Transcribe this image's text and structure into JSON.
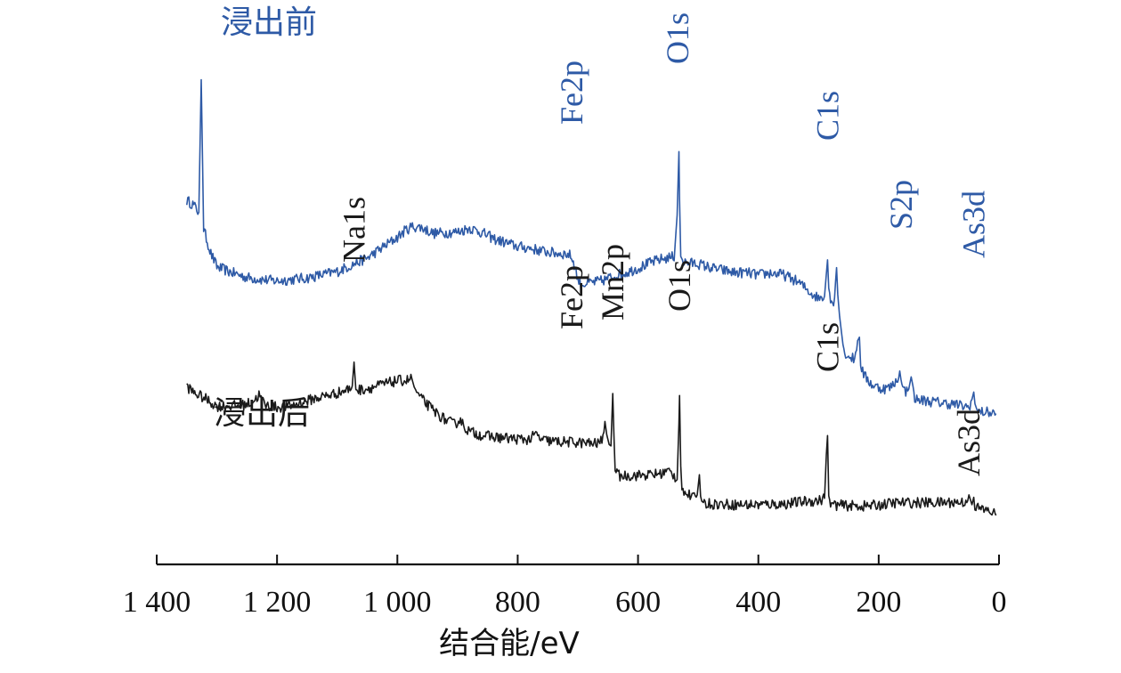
{
  "chart_data": {
    "type": "line",
    "title": "",
    "xlabel": "结合能/eV",
    "ylabel": "",
    "xlim": [
      1400,
      0
    ],
    "x_reversed": true,
    "x_ticks": [
      1400,
      1200,
      1000,
      800,
      600,
      400,
      200,
      0
    ],
    "x_tick_labels": [
      "1 400",
      "1 200",
      "1 000",
      "800",
      "600",
      "400",
      "200",
      "0"
    ],
    "grid": false,
    "colors": {
      "before": "#2e5aa6",
      "after": "#1a1a1a",
      "axis": "#111111"
    },
    "series": [
      {
        "name": "浸出前",
        "color": "#2e5aa6",
        "x": [
          1350,
          1340,
          1335,
          1330,
          1326,
          1322,
          1310,
          1300,
          1280,
          1250,
          1220,
          1200,
          1150,
          1100,
          1050,
          1000,
          985,
          975,
          960,
          940,
          900,
          880,
          860,
          840,
          820,
          800,
          780,
          760,
          740,
          720,
          712,
          706,
          700,
          695,
          690,
          680,
          660,
          640,
          620,
          600,
          580,
          560,
          550,
          540,
          535,
          532,
          531,
          529,
          525,
          520,
          500,
          480,
          460,
          440,
          420,
          400,
          380,
          360,
          340,
          330,
          320,
          310,
          300,
          290,
          287,
          285,
          283,
          280,
          275,
          270,
          268,
          265,
          262,
          258,
          250,
          240,
          235,
          232,
          230,
          225,
          220,
          210,
          200,
          190,
          180,
          170,
          165,
          163,
          160,
          155,
          150,
          146,
          143,
          140,
          135,
          130,
          120,
          110,
          100,
          90,
          80,
          70,
          60,
          50,
          45,
          42,
          40,
          37,
          35,
          30,
          20,
          10,
          5
        ],
        "values": [
          66.3,
          65.6,
          64.7,
          63.9,
          91.0,
          60.5,
          55.5,
          52.8,
          51.8,
          50.6,
          50.1,
          49.9,
          50.5,
          51.8,
          54.6,
          58.8,
          60.4,
          61.0,
          60.8,
          59.6,
          59.9,
          60.7,
          59.8,
          58.5,
          57.7,
          56.9,
          56.6,
          56.0,
          55.6,
          55.4,
          55.1,
          53.3,
          50.2,
          49.1,
          49.3,
          49.5,
          49.9,
          50.9,
          51.6,
          52.5,
          53.6,
          54.4,
          54.6,
          54.9,
          63.3,
          76.3,
          66.6,
          54.9,
          53.9,
          53.6,
          53.4,
          52.6,
          52.1,
          51.6,
          51.6,
          51.1,
          51.5,
          51.2,
          50.1,
          49.3,
          48.2,
          47.2,
          46.4,
          46.8,
          51.3,
          54.2,
          48.4,
          46.5,
          44.9,
          52.6,
          47.1,
          42.7,
          39.6,
          35.5,
          34.5,
          33.9,
          37.7,
          38.4,
          32.9,
          30.8,
          29.9,
          28.6,
          28.1,
          27.9,
          28.2,
          29.6,
          31.5,
          29.8,
          27.9,
          27.3,
          27.8,
          30.3,
          28.4,
          26.1,
          25.4,
          25.6,
          25.4,
          25.2,
          25.1,
          24.9,
          24.8,
          24.6,
          24.3,
          24.1,
          25.7,
          27.2,
          24.8,
          23.7,
          23.3,
          23.1,
          23.1,
          22.9,
          22.8
        ]
      },
      {
        "name": "浸出后",
        "color": "#1a1a1a",
        "x": [
          1350,
          1340,
          1320,
          1300,
          1280,
          1260,
          1240,
          1230,
          1225,
          1220,
          1200,
          1180,
          1160,
          1140,
          1120,
          1100,
          1080,
          1075,
          1072,
          1069,
          1066,
          1060,
          1040,
          1020,
          1000,
          985,
          976,
          972,
          968,
          960,
          940,
          920,
          905,
          895,
          890,
          880,
          860,
          840,
          820,
          800,
          780,
          770,
          760,
          740,
          720,
          700,
          680,
          665,
          660,
          655,
          652,
          648,
          645,
          642,
          640,
          638,
          635,
          630,
          620,
          600,
          580,
          560,
          550,
          545,
          540,
          535,
          532,
          531,
          529,
          527,
          522,
          515,
          505,
          500,
          498,
          496,
          494,
          490,
          480,
          460,
          440,
          420,
          400,
          380,
          360,
          340,
          320,
          300,
          290,
          287,
          285,
          283,
          280,
          270,
          250,
          230,
          210,
          190,
          170,
          160,
          155,
          150,
          140,
          120,
          100,
          80,
          60,
          52,
          50,
          47,
          45,
          42,
          40,
          35,
          30,
          20,
          10,
          5
        ],
        "values": [
          28.4,
          27.2,
          25.9,
          24.3,
          24.4,
          24.4,
          25.2,
          26.6,
          25.7,
          24.5,
          24.1,
          24.3,
          25.0,
          25.8,
          26.4,
          27.0,
          27.8,
          28.4,
          33.3,
          27.7,
          27.6,
          27.7,
          28.2,
          28.9,
          29.5,
          29.6,
          30.0,
          28.2,
          27.3,
          25.8,
          23.4,
          21.5,
          20.6,
          21.7,
          20.3,
          19.1,
          18.4,
          18.0,
          17.8,
          17.6,
          17.5,
          18.6,
          17.4,
          17.1,
          17.0,
          16.9,
          16.7,
          16.7,
          17.6,
          21.2,
          18.5,
          16.5,
          16.2,
          26.9,
          18.2,
          11.1,
          10.4,
          10.1,
          10.1,
          10.2,
          10.3,
          10.6,
          11.1,
          10.7,
          10.1,
          9.3,
          20.8,
          26.5,
          12.1,
          8.0,
          6.6,
          6.1,
          5.4,
          8.0,
          10.3,
          5.9,
          4.9,
          4.5,
          4.4,
          4.3,
          4.2,
          4.2,
          4.2,
          4.3,
          4.3,
          4.6,
          4.9,
          5.0,
          5.5,
          14.4,
          18.3,
          6.0,
          4.4,
          4.1,
          4.0,
          3.9,
          4.0,
          4.3,
          4.6,
          4.6,
          4.5,
          4.6,
          4.6,
          4.6,
          4.6,
          4.7,
          4.7,
          5.0,
          6.2,
          5.0,
          4.2,
          5.7,
          4.0,
          3.5,
          3.3,
          3.0,
          2.6,
          2.0
        ]
      }
    ],
    "annotations": [
      {
        "text": "浸出前",
        "series": "浸出前",
        "kind": "series-label"
      },
      {
        "text": "浸出后",
        "series": "浸出后",
        "kind": "series-label"
      },
      {
        "text": "Fe2p",
        "series": "浸出前",
        "x": 710,
        "kind": "peak"
      },
      {
        "text": "O1s",
        "series": "浸出前",
        "x": 531,
        "kind": "peak"
      },
      {
        "text": "C1s",
        "series": "浸出前",
        "x": 285,
        "kind": "peak"
      },
      {
        "text": "S2p",
        "series": "浸出前",
        "x": 163,
        "kind": "peak"
      },
      {
        "text": "As3d",
        "series": "浸出前",
        "x": 42,
        "kind": "peak"
      },
      {
        "text": "Na1s",
        "series": "浸出后",
        "x": 1072,
        "kind": "peak"
      },
      {
        "text": "Fe2p",
        "series": "浸出后",
        "x": 710,
        "kind": "peak"
      },
      {
        "text": "Mn2p",
        "series": "浸出后",
        "x": 642,
        "kind": "peak"
      },
      {
        "text": "O1s",
        "series": "浸出后",
        "x": 531,
        "kind": "peak"
      },
      {
        "text": "C1s",
        "series": "浸出后",
        "x": 285,
        "kind": "peak"
      },
      {
        "text": "As3d",
        "series": "浸出后",
        "x": 50,
        "kind": "peak"
      }
    ]
  }
}
